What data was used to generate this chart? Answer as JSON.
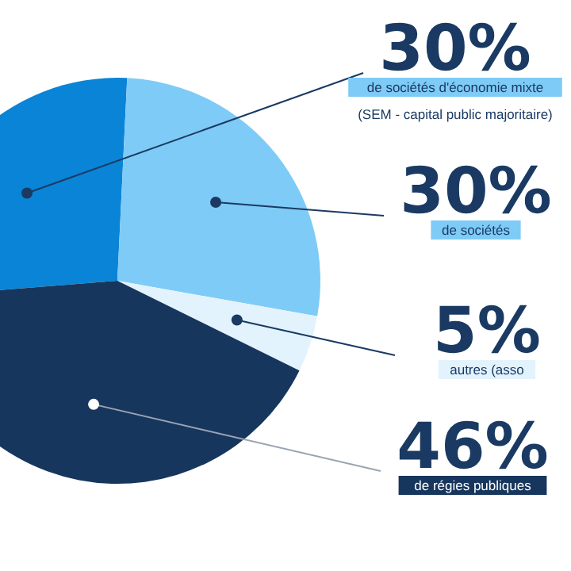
{
  "chart_data": {
    "type": "pie",
    "categories": [
      "de sociétés d'économie mixte",
      "de sociétés",
      "autres (asso",
      "de régies publiques"
    ],
    "values": [
      30,
      30,
      5,
      46
    ],
    "value_labels": [
      "30%",
      "30%",
      "5%",
      "46%"
    ],
    "colors": [
      "#0a84d6",
      "#7ecbf7",
      "#e3f3fd",
      "#17365d"
    ],
    "annotations": [
      "(SEM - capital public majoritaire)"
    ]
  }
}
